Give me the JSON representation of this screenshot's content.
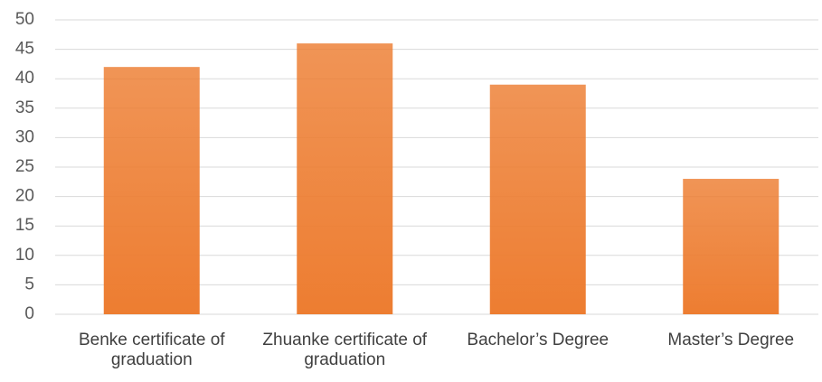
{
  "chart_data": {
    "type": "bar",
    "categories": [
      "Benke certificate of graduation",
      "Zhuanke certificate of graduation",
      "Bachelor’s Degree",
      "Master’s Degree"
    ],
    "values": [
      42,
      46,
      39,
      23
    ],
    "color": "#ed7d31",
    "ylim": [
      0,
      50
    ],
    "yticks": [
      0,
      5,
      10,
      15,
      20,
      25,
      30,
      35,
      40,
      45,
      50
    ],
    "grid": true
  }
}
